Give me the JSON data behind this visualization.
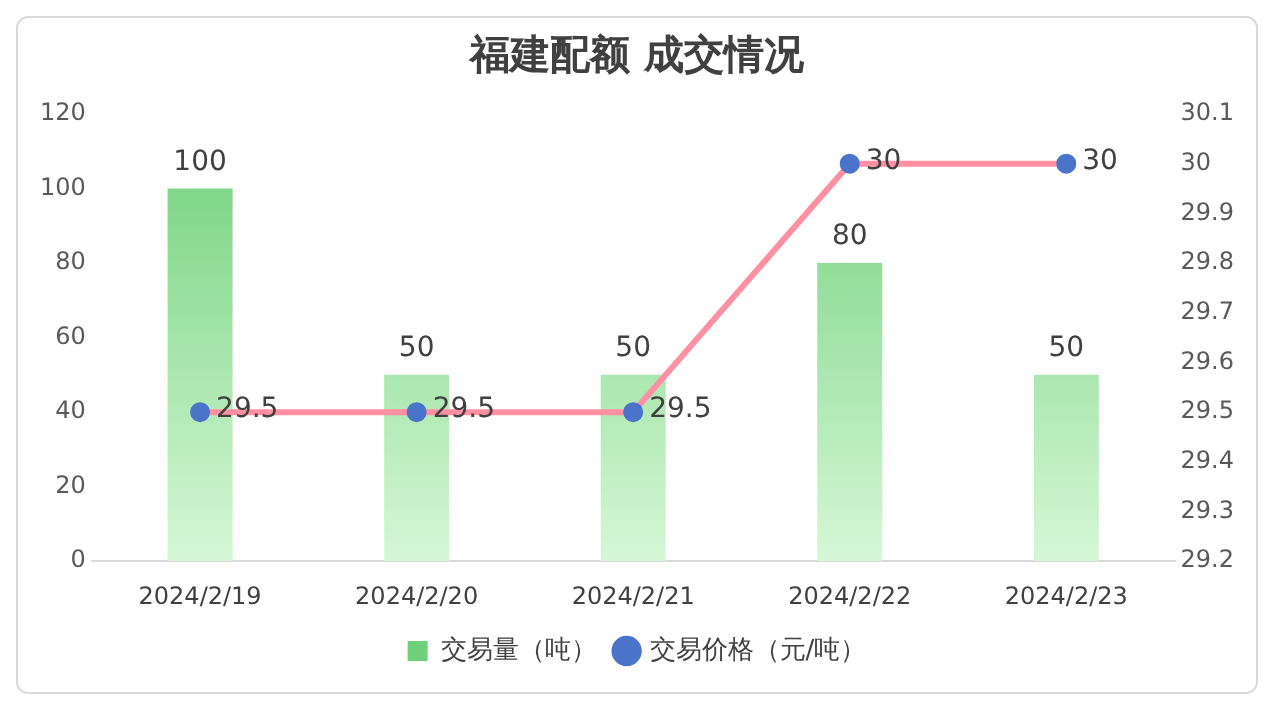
{
  "chart_data": {
    "type": "bar",
    "title": "福建配额 成交情况",
    "categories": [
      "2024/2/19",
      "2024/2/20",
      "2024/2/21",
      "2024/2/22",
      "2024/2/23"
    ],
    "series": [
      {
        "name": "交易量（吨）",
        "color": "#6fd07a",
        "values": [
          100,
          50,
          50,
          80,
          50
        ]
      },
      {
        "name": "交易价格（元/吨）",
        "type": "line",
        "axis": "y2",
        "color": "#ff8fa3",
        "marker": "circle",
        "values": [
          29.5,
          29.5,
          29.5,
          30,
          30
        ]
      }
    ],
    "ylim": [
      0,
      120
    ],
    "yticks": [
      0,
      20,
      40,
      60,
      80,
      100,
      120
    ],
    "y2lim": [
      29.2,
      30.1
    ],
    "y2ticks": [
      29.2,
      29.3,
      29.4,
      29.5,
      29.6,
      29.7,
      29.8,
      29.9,
      30,
      30.1
    ],
    "data_labels": true,
    "legend": "bottom",
    "grid": false
  }
}
